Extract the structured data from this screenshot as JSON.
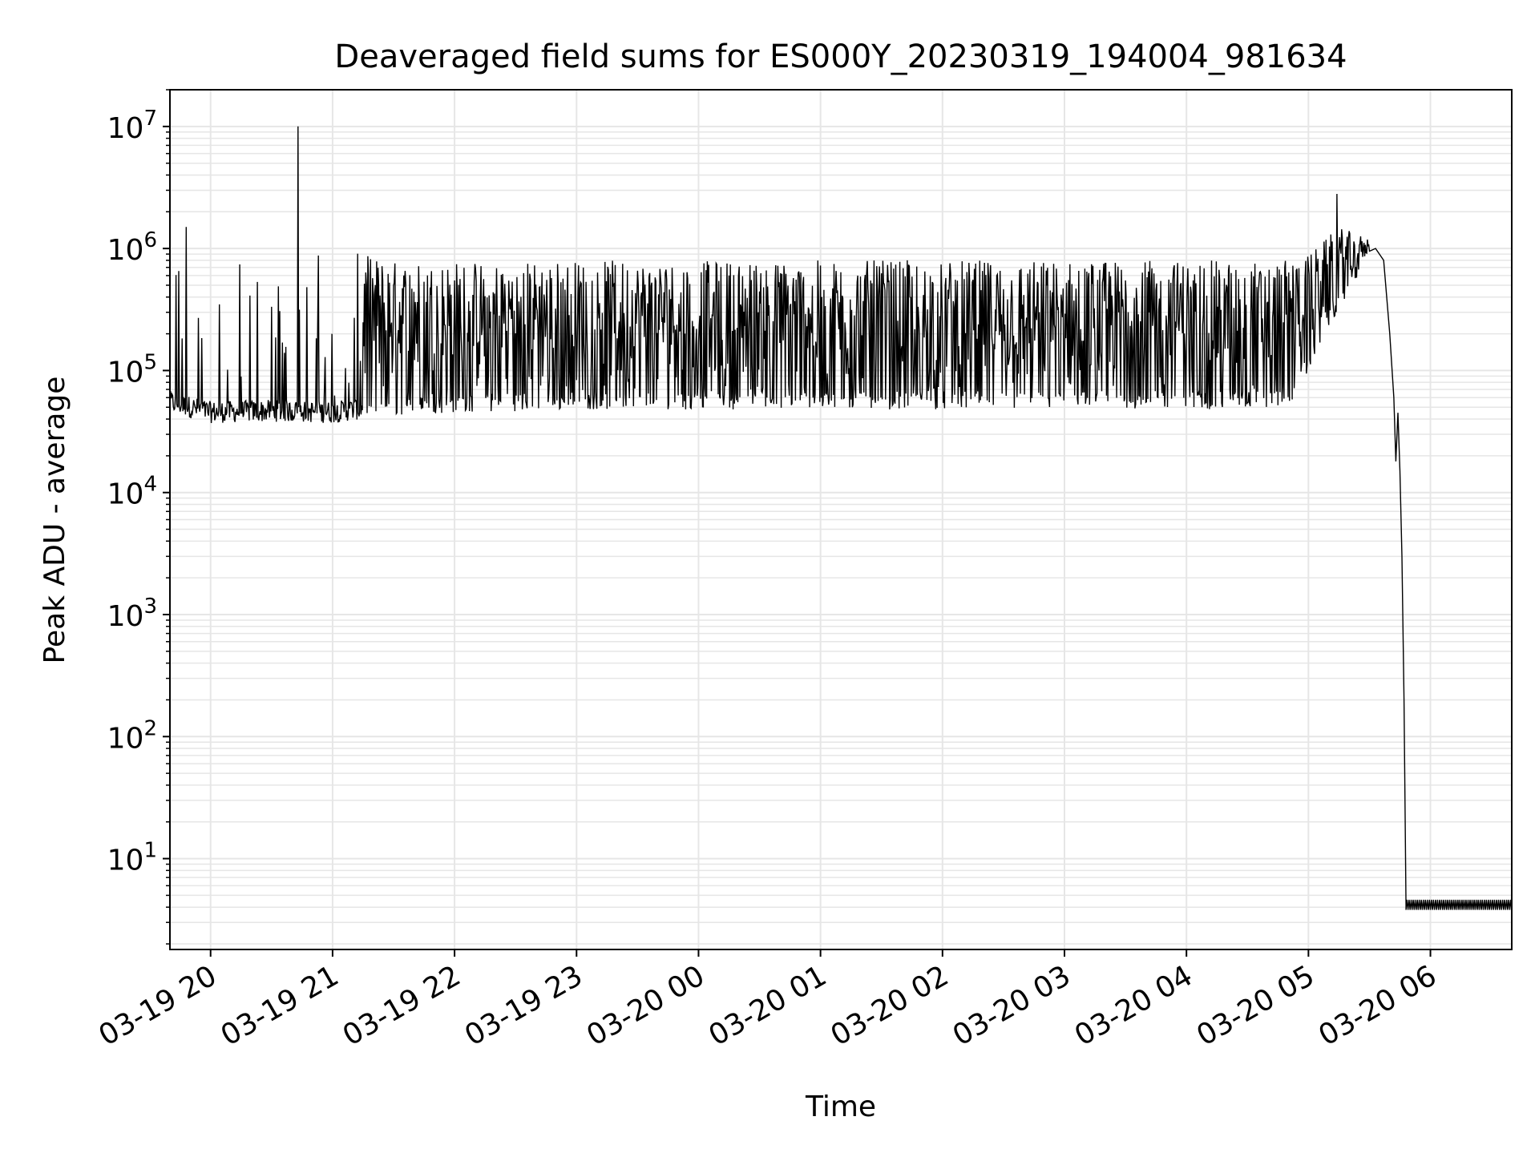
{
  "chart_data": {
    "type": "line",
    "title": "Deaveraged field sums for ES000Y_20230319_194004_981634",
    "xlabel": "Time",
    "ylabel": "Peak ADU - average",
    "yscale": "log",
    "ylim": [
      1.8,
      20000000
    ],
    "xlim": [
      "2023-03-19 19:40",
      "2023-03-20 06:40"
    ],
    "grid": "on (major and minor)",
    "line_color": "#000000",
    "grid_color": "#e6e6e6",
    "x_ticks": [
      {
        "value": "2023-03-19 20:00",
        "label": "03-19 20"
      },
      {
        "value": "2023-03-19 21:00",
        "label": "03-19 21"
      },
      {
        "value": "2023-03-19 22:00",
        "label": "03-19 22"
      },
      {
        "value": "2023-03-19 23:00",
        "label": "03-19 23"
      },
      {
        "value": "2023-03-20 00:00",
        "label": "03-20 00"
      },
      {
        "value": "2023-03-20 01:00",
        "label": "03-20 01"
      },
      {
        "value": "2023-03-20 02:00",
        "label": "03-20 02"
      },
      {
        "value": "2023-03-20 03:00",
        "label": "03-20 03"
      },
      {
        "value": "2023-03-20 04:00",
        "label": "03-20 04"
      },
      {
        "value": "2023-03-20 05:00",
        "label": "03-20 05"
      },
      {
        "value": "2023-03-20 06:00",
        "label": "03-20 06"
      }
    ],
    "y_ticks": [
      {
        "value": 10,
        "base": "10",
        "exp": "1"
      },
      {
        "value": 100,
        "base": "10",
        "exp": "2"
      },
      {
        "value": 1000,
        "base": "10",
        "exp": "3"
      },
      {
        "value": 10000,
        "base": "10",
        "exp": "4"
      },
      {
        "value": 100000,
        "base": "10",
        "exp": "5"
      },
      {
        "value": 1000000,
        "base": "10",
        "exp": "6"
      },
      {
        "value": 10000000,
        "base": "10",
        "exp": "7"
      }
    ],
    "series": [
      {
        "description_of_values": "envelope of the noisy black trace (time, peak ADU - average)",
        "envelope": [
          {
            "t": "2023-03-19 19:40",
            "low": 45000,
            "high": 1000000
          },
          {
            "t": "2023-03-19 20:00",
            "low": 37000,
            "high": 900000
          },
          {
            "t": "2023-03-19 20:30",
            "low": 38000,
            "high": 950000
          },
          {
            "t": "2023-03-19 21:00",
            "low": 37000,
            "high": 1000000
          },
          {
            "t": "2023-03-19 21:30",
            "low": 43000,
            "high": 800000
          },
          {
            "t": "2023-03-19 22:00",
            "low": 45000,
            "high": 800000
          },
          {
            "t": "2023-03-19 23:00",
            "low": 48000,
            "high": 800000
          },
          {
            "t": "2023-03-20 00:00",
            "low": 48000,
            "high": 800000
          },
          {
            "t": "2023-03-20 01:00",
            "low": 48000,
            "high": 800000
          },
          {
            "t": "2023-03-20 02:00",
            "low": 48000,
            "high": 800000
          },
          {
            "t": "2023-03-20 03:00",
            "low": 48000,
            "high": 800000
          },
          {
            "t": "2023-03-20 04:00",
            "low": 48000,
            "high": 800000
          },
          {
            "t": "2023-03-20 04:50",
            "low": 48000,
            "high": 800000
          },
          {
            "t": "2023-03-20 05:00",
            "low": 100000,
            "high": 900000
          },
          {
            "t": "2023-03-20 05:15",
            "low": 300000,
            "high": 1500000
          },
          {
            "t": "2023-03-20 05:30",
            "low": 900000,
            "high": 1200000
          }
        ],
        "spikes": [
          {
            "t": "2023-03-19 20:43",
            "value": 10000000
          },
          {
            "t": "2023-03-19 19:48",
            "value": 1500000
          },
          {
            "t": "2023-03-20 05:14",
            "value": 2800000
          }
        ],
        "decline": [
          {
            "t": "2023-03-20 05:33",
            "value": 1000000
          },
          {
            "t": "2023-03-20 05:37",
            "value": 800000
          },
          {
            "t": "2023-03-20 05:40",
            "value": 200000
          },
          {
            "t": "2023-03-20 05:42",
            "value": 60000
          },
          {
            "t": "2023-03-20 05:43",
            "value": 18000
          },
          {
            "t": "2023-03-20 05:44",
            "value": 45000
          },
          {
            "t": "2023-03-20 05:45",
            "value": 15000
          },
          {
            "t": "2023-03-20 05:46",
            "value": 3000
          },
          {
            "t": "2023-03-20 05:47",
            "value": 200
          },
          {
            "t": "2023-03-20 05:48",
            "value": 4
          }
        ],
        "tail": {
          "from": "2023-03-20 05:48",
          "to": "2023-03-20 06:40",
          "low": 3.8,
          "high": 4.6
        }
      }
    ]
  }
}
